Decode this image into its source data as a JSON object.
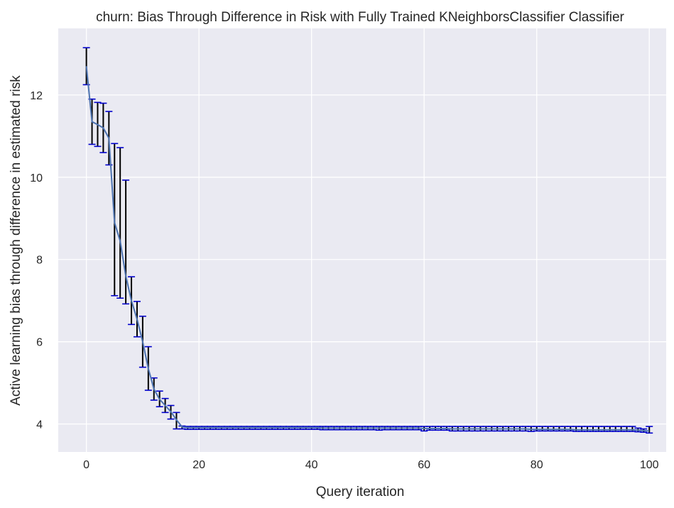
{
  "chart_data": {
    "type": "line",
    "title": "churn: Bias Through Difference in Risk with Fully Trained KNeighborsClassifier Classifier",
    "xlabel": "Query iteration",
    "ylabel": "Active learning bias through difference in estimated risk",
    "xlim": [
      -5,
      103
    ],
    "ylim": [
      3.32,
      13.62
    ],
    "xticks": [
      0,
      20,
      40,
      60,
      80,
      100
    ],
    "yticks": [
      4,
      6,
      8,
      10,
      12
    ],
    "xtick_labels": [
      "0",
      "20",
      "40",
      "60",
      "80",
      "100"
    ],
    "ytick_labels": [
      "4",
      "6",
      "8",
      "10",
      "12"
    ],
    "grid": true,
    "colors": {
      "background": "#eaeaf2",
      "grid": "#ffffff",
      "line": "#4c72b0",
      "errorbar": "#000000",
      "caps": "#0000cc"
    },
    "series": [
      {
        "x": [
          0,
          1,
          2,
          3,
          4,
          5,
          6,
          7,
          8,
          9,
          10,
          11,
          12,
          13,
          14,
          15,
          16,
          17,
          18,
          19,
          20,
          21,
          22,
          23,
          24,
          25,
          26,
          27,
          28,
          29,
          30,
          31,
          32,
          33,
          34,
          35,
          36,
          37,
          38,
          39,
          40,
          41,
          42,
          43,
          44,
          45,
          46,
          47,
          48,
          49,
          50,
          51,
          52,
          53,
          54,
          55,
          56,
          57,
          58,
          59,
          60,
          61,
          62,
          63,
          64,
          65,
          66,
          67,
          68,
          69,
          70,
          71,
          72,
          73,
          74,
          75,
          76,
          77,
          78,
          79,
          80,
          81,
          82,
          83,
          84,
          85,
          86,
          87,
          88,
          89,
          90,
          91,
          92,
          93,
          94,
          95,
          96,
          97,
          98,
          99,
          100
        ],
        "mean": [
          12.7,
          11.35,
          11.28,
          11.2,
          10.95,
          8.9,
          8.45,
          7.6,
          7.0,
          6.55,
          6.0,
          5.35,
          4.85,
          4.6,
          4.45,
          4.3,
          4.1,
          3.93,
          3.91,
          3.91,
          3.91,
          3.91,
          3.91,
          3.91,
          3.91,
          3.91,
          3.91,
          3.91,
          3.91,
          3.91,
          3.91,
          3.91,
          3.91,
          3.91,
          3.91,
          3.91,
          3.91,
          3.91,
          3.91,
          3.91,
          3.91,
          3.91,
          3.9,
          3.9,
          3.9,
          3.9,
          3.9,
          3.9,
          3.9,
          3.9,
          3.9,
          3.9,
          3.9,
          3.9,
          3.9,
          3.9,
          3.9,
          3.9,
          3.9,
          3.9,
          3.89,
          3.89,
          3.89,
          3.89,
          3.89,
          3.88,
          3.88,
          3.88,
          3.88,
          3.88,
          3.88,
          3.88,
          3.88,
          3.88,
          3.88,
          3.88,
          3.88,
          3.88,
          3.88,
          3.87,
          3.87,
          3.87,
          3.87,
          3.87,
          3.87,
          3.87,
          3.87,
          3.86,
          3.86,
          3.86,
          3.86,
          3.86,
          3.86,
          3.86,
          3.86,
          3.86,
          3.86,
          3.86,
          3.85,
          3.84,
          3.83
        ],
        "lower": [
          12.25,
          10.8,
          10.75,
          10.6,
          10.3,
          7.12,
          7.06,
          6.92,
          6.42,
          6.12,
          5.38,
          4.82,
          4.58,
          4.42,
          4.28,
          4.12,
          3.88,
          3.88,
          3.87,
          3.87,
          3.87,
          3.87,
          3.87,
          3.87,
          3.87,
          3.87,
          3.87,
          3.87,
          3.87,
          3.87,
          3.87,
          3.87,
          3.87,
          3.87,
          3.87,
          3.87,
          3.87,
          3.87,
          3.87,
          3.87,
          3.87,
          3.87,
          3.86,
          3.86,
          3.86,
          3.86,
          3.86,
          3.86,
          3.86,
          3.86,
          3.86,
          3.86,
          3.85,
          3.86,
          3.86,
          3.86,
          3.86,
          3.86,
          3.86,
          3.86,
          3.83,
          3.85,
          3.85,
          3.85,
          3.85,
          3.83,
          3.83,
          3.83,
          3.83,
          3.83,
          3.83,
          3.83,
          3.83,
          3.83,
          3.83,
          3.83,
          3.83,
          3.83,
          3.83,
          3.82,
          3.83,
          3.83,
          3.83,
          3.83,
          3.83,
          3.83,
          3.83,
          3.82,
          3.82,
          3.82,
          3.82,
          3.82,
          3.82,
          3.82,
          3.82,
          3.82,
          3.82,
          3.82,
          3.81,
          3.8,
          3.78
        ],
        "upper": [
          13.15,
          11.9,
          11.82,
          11.8,
          11.6,
          10.82,
          10.72,
          9.93,
          7.58,
          6.98,
          6.62,
          5.88,
          5.12,
          4.8,
          4.62,
          4.45,
          4.28,
          3.95,
          3.94,
          3.94,
          3.94,
          3.94,
          3.94,
          3.94,
          3.94,
          3.94,
          3.94,
          3.94,
          3.94,
          3.94,
          3.94,
          3.94,
          3.94,
          3.94,
          3.94,
          3.94,
          3.94,
          3.94,
          3.94,
          3.94,
          3.94,
          3.94,
          3.94,
          3.94,
          3.94,
          3.94,
          3.94,
          3.94,
          3.94,
          3.94,
          3.94,
          3.94,
          3.94,
          3.94,
          3.94,
          3.94,
          3.94,
          3.94,
          3.94,
          3.94,
          3.94,
          3.94,
          3.94,
          3.94,
          3.94,
          3.94,
          3.94,
          3.94,
          3.94,
          3.94,
          3.94,
          3.94,
          3.94,
          3.94,
          3.94,
          3.94,
          3.94,
          3.94,
          3.94,
          3.94,
          3.94,
          3.94,
          3.94,
          3.94,
          3.94,
          3.94,
          3.94,
          3.94,
          3.94,
          3.94,
          3.94,
          3.94,
          3.94,
          3.94,
          3.94,
          3.94,
          3.94,
          3.94,
          3.9,
          3.88,
          3.94
        ]
      }
    ]
  }
}
